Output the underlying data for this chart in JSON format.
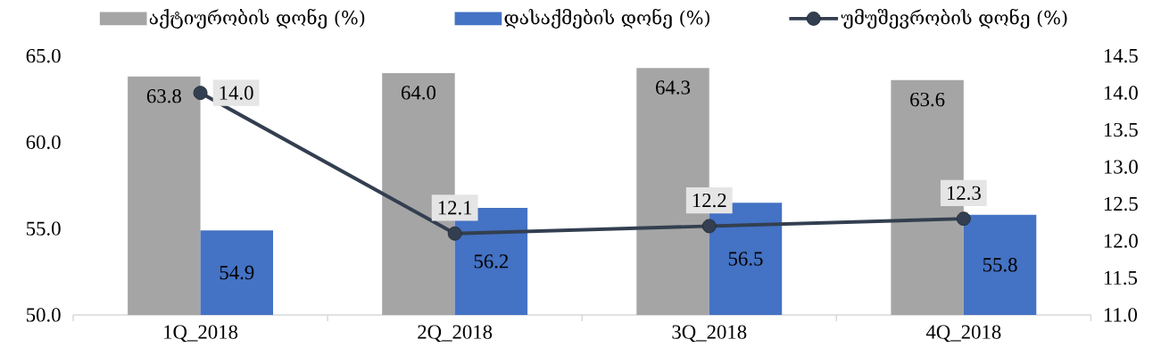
{
  "chart_data": {
    "type": "bar",
    "categories": [
      "1Q_2018",
      "2Q_2018",
      "3Q_2018",
      "4Q_2018"
    ],
    "series": [
      {
        "name": "აქტიურობის დონე (%)",
        "color": "#a5a5a5",
        "values": [
          63.8,
          64.0,
          64.3,
          63.6
        ],
        "value_labels": [
          "63.8",
          "64.0",
          "64.3",
          "63.6"
        ]
      },
      {
        "name": "დასაქმების დონე (%)",
        "color": "#4472c4",
        "values": [
          54.9,
          56.2,
          56.5,
          55.8
        ],
        "value_labels": [
          "54.9",
          "56.2",
          "56.5",
          "55.8"
        ]
      },
      {
        "name": "უმუშევრობის დონე (%)",
        "type": "line",
        "axis": "y2",
        "color": "#333f50",
        "values": [
          14.0,
          12.1,
          12.2,
          12.3
        ],
        "value_labels": [
          "14.0",
          "12.1",
          "12.2",
          "12.3"
        ]
      }
    ],
    "ylim": [
      50,
      65
    ],
    "yticks": [
      {
        "value": 50,
        "label": "50.0"
      },
      {
        "value": 55,
        "label": "55.0"
      },
      {
        "value": 60,
        "label": "60.0"
      },
      {
        "value": 65,
        "label": "65.0"
      }
    ],
    "y2lim": [
      11,
      14.5
    ],
    "y2ticks": [
      {
        "value": 11,
        "label": "11.0"
      },
      {
        "value": 11.5,
        "label": "11.5"
      },
      {
        "value": 12,
        "label": "12.0"
      },
      {
        "value": 12.5,
        "label": "12.5"
      },
      {
        "value": 13,
        "label": "13.0"
      },
      {
        "value": 13.5,
        "label": "13.5"
      },
      {
        "value": 14,
        "label": "14.0"
      },
      {
        "value": 14.5,
        "label": "14.5"
      }
    ],
    "marker": "circle",
    "legend": "top"
  }
}
